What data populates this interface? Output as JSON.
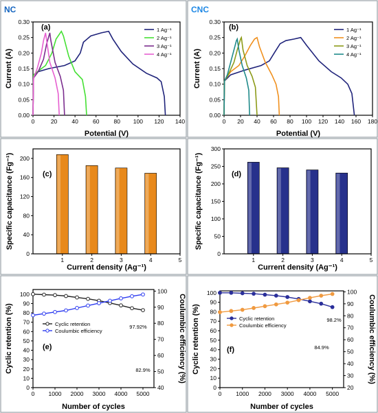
{
  "colors": {
    "frame": "#9aa2a8",
    "nc_tag": "#1565c0",
    "cnc_tag": "#1e88e5",
    "d1": "#1f237a",
    "nc2": "#44e033",
    "nc3": "#7b2d8e",
    "nc4": "#e65fd0",
    "cnc2": "#f0901e",
    "cnc3": "#8c9a18",
    "cnc4": "#1f8a8a",
    "bar_orange": "#e8891b",
    "bar_navy": "#27318c",
    "retention": "#222222",
    "efficiency_e": "#2b3af0",
    "retention_f": "#2a2f9a",
    "efficiency_f": "#f09a40",
    "eff_axis": "#1b2bd0"
  },
  "tags": {
    "nc": "NC",
    "cnc": "CNC"
  },
  "chart_data": [
    {
      "id": "a",
      "panel_label": "(a)",
      "type": "line",
      "xlabel": "Potential (V)",
      "ylabel": "Current (A)",
      "xlim": [
        0,
        140
      ],
      "ylim": [
        0,
        0.3
      ],
      "xticks": [
        0,
        20,
        40,
        60,
        80,
        100,
        120,
        140
      ],
      "xtick_labels": [
        "0",
        "20",
        "40",
        "60",
        "80",
        "100",
        "120",
        "140"
      ],
      "yticks": [
        0,
        0.05,
        0.1,
        0.15,
        0.2,
        0.25,
        0.3
      ],
      "ytick_labels": [
        "0.00",
        "0.05",
        "0.10",
        "0.15",
        "0.20",
        "0.25",
        "0.30"
      ],
      "legend_position": "top-right",
      "series": [
        {
          "name": "1 Ag⁻¹",
          "color_key": "d1",
          "points": [
            [
              0,
              0
            ],
            [
              0.5,
              0.13
            ],
            [
              5,
              0.14
            ],
            [
              15,
              0.15
            ],
            [
              30,
              0.16
            ],
            [
              40,
              0.175
            ],
            [
              45,
              0.2
            ],
            [
              48,
              0.235
            ],
            [
              55,
              0.255
            ],
            [
              65,
              0.265
            ],
            [
              72,
              0.27
            ],
            [
              76,
              0.245
            ],
            [
              84,
              0.205
            ],
            [
              95,
              0.165
            ],
            [
              108,
              0.135
            ],
            [
              118,
              0.12
            ],
            [
              122,
              0.108
            ],
            [
              125,
              0.06
            ],
            [
              126,
              0
            ]
          ]
        },
        {
          "name": "2 Ag⁻¹",
          "color_key": "nc2",
          "points": [
            [
              0,
              0
            ],
            [
              0.5,
              0.13
            ],
            [
              6,
              0.145
            ],
            [
              12,
              0.16
            ],
            [
              18,
              0.2
            ],
            [
              22,
              0.245
            ],
            [
              27,
              0.27
            ],
            [
              29,
              0.255
            ],
            [
              34,
              0.19
            ],
            [
              40,
              0.14
            ],
            [
              47,
              0.115
            ],
            [
              50,
              0.06
            ],
            [
              51,
              0
            ]
          ]
        },
        {
          "name": "3 Ag⁻¹",
          "color_key": "nc3",
          "points": [
            [
              0,
              0
            ],
            [
              0.5,
              0.12
            ],
            [
              5,
              0.14
            ],
            [
              10,
              0.18
            ],
            [
              13,
              0.23
            ],
            [
              16,
              0.265
            ],
            [
              17,
              0.24
            ],
            [
              21,
              0.17
            ],
            [
              26,
              0.125
            ],
            [
              29,
              0.08
            ],
            [
              30,
              0
            ]
          ]
        },
        {
          "name": "4 Ag⁻¹",
          "color_key": "nc4",
          "points": [
            [
              0,
              0
            ],
            [
              0.5,
              0.12
            ],
            [
              4,
              0.15
            ],
            [
              8,
              0.2
            ],
            [
              10,
              0.24
            ],
            [
              12,
              0.265
            ],
            [
              13,
              0.24
            ],
            [
              16,
              0.17
            ],
            [
              21,
              0.12
            ],
            [
              24,
              0.07
            ],
            [
              25,
              0
            ]
          ]
        }
      ]
    },
    {
      "id": "b",
      "panel_label": "(b)",
      "type": "line",
      "xlabel": "Potential (V)",
      "ylabel": "Current (A)",
      "xlim": [
        0,
        180
      ],
      "ylim": [
        0,
        0.3
      ],
      "xticks": [
        0,
        20,
        40,
        60,
        80,
        100,
        120,
        140,
        160,
        180
      ],
      "xtick_labels": [
        "0",
        "20",
        "40",
        "60",
        "80",
        "100",
        "120",
        "140",
        "160",
        "180"
      ],
      "yticks": [
        0,
        0.05,
        0.1,
        0.15,
        0.2,
        0.25,
        0.3
      ],
      "ytick_labels": [
        "0.00",
        "0.05",
        "0.10",
        "0.15",
        "0.20",
        "0.25",
        "0.30"
      ],
      "legend_position": "top-right",
      "series": [
        {
          "name": "1 Ag⁻¹",
          "color_key": "d1",
          "points": [
            [
              0,
              0
            ],
            [
              0.5,
              0.11
            ],
            [
              8,
              0.13
            ],
            [
              25,
              0.145
            ],
            [
              45,
              0.16
            ],
            [
              55,
              0.175
            ],
            [
              62,
              0.205
            ],
            [
              68,
              0.23
            ],
            [
              75,
              0.24
            ],
            [
              85,
              0.245
            ],
            [
              93,
              0.25
            ],
            [
              100,
              0.225
            ],
            [
              115,
              0.175
            ],
            [
              130,
              0.14
            ],
            [
              142,
              0.12
            ],
            [
              150,
              0.1
            ],
            [
              155,
              0.07
            ],
            [
              158,
              0
            ]
          ]
        },
        {
          "name": "2 Ag⁻¹",
          "color_key": "cnc2",
          "points": [
            [
              0,
              0
            ],
            [
              0.5,
              0.11
            ],
            [
              8,
              0.14
            ],
            [
              18,
              0.16
            ],
            [
              25,
              0.19
            ],
            [
              32,
              0.225
            ],
            [
              37,
              0.245
            ],
            [
              40,
              0.25
            ],
            [
              43,
              0.22
            ],
            [
              50,
              0.17
            ],
            [
              58,
              0.13
            ],
            [
              63,
              0.1
            ],
            [
              66,
              0.06
            ],
            [
              67,
              0
            ]
          ]
        },
        {
          "name": "3 Ag⁻¹",
          "color_key": "cnc3",
          "points": [
            [
              0,
              0
            ],
            [
              0.5,
              0.11
            ],
            [
              5,
              0.13
            ],
            [
              12,
              0.17
            ],
            [
              16,
              0.21
            ],
            [
              20,
              0.245
            ],
            [
              21,
              0.25
            ],
            [
              23,
              0.21
            ],
            [
              28,
              0.16
            ],
            [
              34,
              0.125
            ],
            [
              38,
              0.09
            ],
            [
              40,
              0
            ]
          ]
        },
        {
          "name": "4 Ag⁻¹",
          "color_key": "cnc4",
          "points": [
            [
              0,
              0
            ],
            [
              0.5,
              0.11
            ],
            [
              4,
              0.13
            ],
            [
              8,
              0.17
            ],
            [
              12,
              0.21
            ],
            [
              15,
              0.24
            ],
            [
              16,
              0.245
            ],
            [
              18,
              0.21
            ],
            [
              22,
              0.16
            ],
            [
              27,
              0.12
            ],
            [
              30,
              0.08
            ],
            [
              31,
              0
            ]
          ]
        }
      ]
    },
    {
      "id": "c",
      "panel_label": "(c)",
      "type": "bar",
      "xlabel": "Current density (Ag⁻¹)",
      "ylabel": "Specific capacitance (Fg⁻¹)",
      "xlim": [
        0,
        5
      ],
      "ylim": [
        0,
        220
      ],
      "xticks": [
        1,
        2,
        3,
        4,
        5
      ],
      "xtick_labels": [
        "1",
        "2",
        "3",
        "4",
        "5"
      ],
      "yticks": [
        0,
        40,
        80,
        120,
        160,
        200
      ],
      "ytick_labels": [
        "0",
        "40",
        "80",
        "120",
        "160",
        "200"
      ],
      "bar_color_key": "bar_orange",
      "x": [
        1,
        2,
        3,
        4
      ],
      "values": [
        208,
        185,
        180,
        169
      ]
    },
    {
      "id": "d",
      "panel_label": "(d)",
      "type": "bar",
      "xlabel": "Current density (Ag⁻¹)",
      "ylabel": "Specific capacitance (Fg⁻¹)",
      "xlim": [
        0,
        5
      ],
      "ylim": [
        0,
        300
      ],
      "xticks": [
        1,
        2,
        3,
        4,
        5
      ],
      "xtick_labels": [
        "1",
        "2",
        "3",
        "4",
        "5"
      ],
      "yticks": [
        0,
        50,
        100,
        150,
        200,
        250,
        300
      ],
      "ytick_labels": [
        "0",
        "50",
        "100",
        "150",
        "200",
        "250",
        "300"
      ],
      "bar_color_key": "bar_navy",
      "x": [
        1,
        2,
        3,
        4
      ],
      "values": [
        262,
        246,
        240,
        231
      ]
    },
    {
      "id": "e",
      "panel_label": "(e)",
      "type": "line",
      "xlabel": "Number of cycles",
      "ylabel": "Cyclic retention (%)",
      "y2label": "Coulumbic efficiency (%)",
      "xlim": [
        0,
        5500
      ],
      "ylim": [
        0,
        105
      ],
      "y2lim": [
        40,
        101
      ],
      "xticks": [
        0,
        1000,
        2000,
        3000,
        4000,
        5000
      ],
      "xtick_labels": [
        "0",
        "1000",
        "2000",
        "3000",
        "4000",
        "5000"
      ],
      "yticks": [
        0,
        10,
        20,
        30,
        40,
        50,
        60,
        70,
        80,
        90,
        100
      ],
      "ytick_labels": [
        "0",
        "10",
        "20",
        "30",
        "40",
        "50",
        "60",
        "70",
        "80",
        "90",
        "100"
      ],
      "y2ticks": [
        40,
        50,
        60,
        70,
        80,
        90,
        100
      ],
      "y2tick_labels": [
        "40",
        "50",
        "60",
        "70",
        "80",
        "90",
        "100"
      ],
      "legend_position": "center-left",
      "annotations": [
        "97.92%",
        "82.9%"
      ],
      "series": [
        {
          "name": "Cyclic retention",
          "axis": "left",
          "color_key": "retention",
          "marker": "open-circle",
          "points": [
            [
              0,
              100
            ],
            [
              500,
              99.5
            ],
            [
              1000,
              99
            ],
            [
              1500,
              98
            ],
            [
              2000,
              96.5
            ],
            [
              2500,
              95
            ],
            [
              3000,
              93
            ],
            [
              3500,
              90.5
            ],
            [
              4000,
              88
            ],
            [
              4500,
              85
            ],
            [
              5000,
              82.9
            ]
          ]
        },
        {
          "name": "Coulumbic efficiency",
          "axis": "right",
          "color_key": "efficiency_e",
          "marker": "open-circle",
          "points": [
            [
              0,
              85
            ],
            [
              500,
              86
            ],
            [
              1000,
              87
            ],
            [
              1500,
              88
            ],
            [
              2000,
              89.5
            ],
            [
              2500,
              91
            ],
            [
              3000,
              92.5
            ],
            [
              3500,
              94
            ],
            [
              4000,
              95.5
            ],
            [
              4500,
              96.8
            ],
            [
              5000,
              97.92
            ]
          ]
        }
      ]
    },
    {
      "id": "f",
      "panel_label": "(f)",
      "type": "line",
      "xlabel": "Number of cycles",
      "ylabel": "Cyclic retention (%)",
      "y2label": "Coulumbic efficiency (%)",
      "xlim": [
        0,
        5500
      ],
      "ylim": [
        0,
        102
      ],
      "y2lim": [
        20,
        100.8
      ],
      "xticks": [
        0,
        1000,
        2000,
        3000,
        4000,
        5000
      ],
      "xtick_labels": [
        "0",
        "1000",
        "2000",
        "3000",
        "4000",
        "5000"
      ],
      "yticks": [
        0,
        10,
        20,
        30,
        40,
        50,
        60,
        70,
        80,
        90,
        100
      ],
      "ytick_labels": [
        "0",
        "10",
        "20",
        "30",
        "40",
        "50",
        "60",
        "70",
        "80",
        "90",
        "100"
      ],
      "y2ticks": [
        20,
        30,
        40,
        50,
        60,
        70,
        80,
        90,
        100
      ],
      "y2tick_labels": [
        "20",
        "30",
        "40",
        "50",
        "60",
        "70",
        "80",
        "90",
        "100"
      ],
      "legend_position": "center-left",
      "annotations": [
        "98.2%",
        "84.9%"
      ],
      "series": [
        {
          "name": "Cyclic retention",
          "axis": "left",
          "color_key": "retention_f",
          "marker": "filled-circle",
          "points": [
            [
              0,
              100
            ],
            [
              500,
              100
            ],
            [
              1000,
              99.5
            ],
            [
              1500,
              99
            ],
            [
              2000,
              98
            ],
            [
              2500,
              97
            ],
            [
              3000,
              95.5
            ],
            [
              3500,
              93.5
            ],
            [
              4000,
              91
            ],
            [
              4500,
              88.5
            ],
            [
              5000,
              84.9
            ]
          ]
        },
        {
          "name": "Coulumbic efficiency",
          "axis": "right",
          "color_key": "efficiency_f",
          "marker": "filled-circle",
          "points": [
            [
              0,
              83
            ],
            [
              500,
              84
            ],
            [
              1000,
              85
            ],
            [
              1500,
              86.5
            ],
            [
              2000,
              88
            ],
            [
              2500,
              89.5
            ],
            [
              3000,
              91
            ],
            [
              3500,
              93
            ],
            [
              4000,
              95
            ],
            [
              4500,
              96.8
            ],
            [
              5000,
              98.2
            ]
          ]
        }
      ]
    }
  ]
}
